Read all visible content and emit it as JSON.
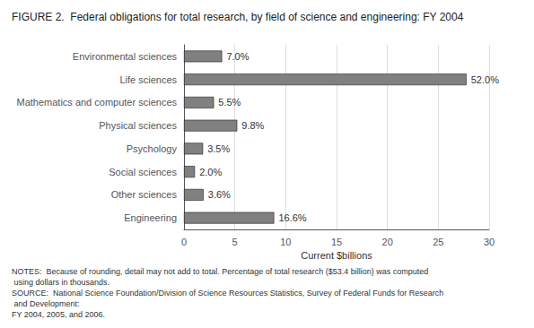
{
  "chart_data": {
    "type": "bar",
    "orientation": "horizontal",
    "title": "FIGURE 2.  Federal obligations for total research, by field of science and engineering: FY 2004",
    "categories": [
      "Engineering",
      "Other sciences",
      "Social sciences",
      "Psychology",
      "Physical sciences",
      "Mathematics and computer sciences",
      "Life sciences",
      "Environmental sciences"
    ],
    "values": [
      8.86,
      1.92,
      1.07,
      1.87,
      5.23,
      2.94,
      27.77,
      3.74
    ],
    "annotations": [
      "16.6%",
      "3.6%",
      "2.0%",
      "3.5%",
      "9.8%",
      "5.5%",
      "52.0%",
      "7.0%"
    ],
    "color": "#808080",
    "xlabel": "Current $billions",
    "xlim": [
      0,
      30
    ],
    "xticks": [
      0,
      5,
      10,
      15,
      20,
      25,
      30
    ],
    "grid": true,
    "notes": "NOTES:  Because of rounding, detail may not add to total. Percentage of total research ($53.4 billion) was computed using dollars in thousands.",
    "source": [
      "SOURCE:  National Science Foundation/Division of Science Resources Statistics, Survey of Federal Funds for Research and Development:",
      "FY 2004, 2005, and 2006."
    ]
  }
}
